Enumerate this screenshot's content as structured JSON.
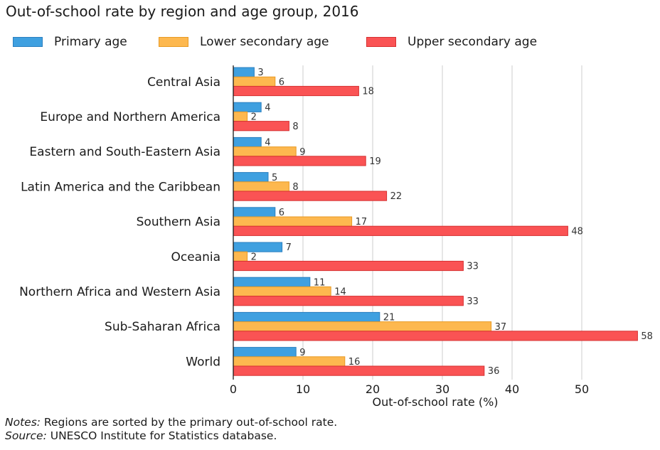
{
  "chart_data": {
    "type": "bar",
    "orientation": "horizontal",
    "title": "Out-of-school rate by region and age group, 2016",
    "xlabel": "Out-of-school rate (%)",
    "ylabel": "",
    "xlim": [
      0,
      59
    ],
    "xticks": [
      0,
      10,
      20,
      30,
      40,
      50
    ],
    "grid": true,
    "legend_position": "top-left",
    "categories": [
      "Central Asia",
      "Europe and Northern America",
      "Eastern and South-Eastern Asia",
      "Latin America and the Caribbean",
      "Southern Asia",
      "Oceania",
      "Northern Africa and Western Asia",
      "Sub-Saharan Africa",
      "World"
    ],
    "series": [
      {
        "name": "Primary age",
        "color": "#3fa0e0",
        "border": "#2b7fc0",
        "values": [
          3,
          4,
          4,
          5,
          6,
          7,
          11,
          21,
          9
        ]
      },
      {
        "name": "Lower secondary age",
        "color": "#fdb84f",
        "border": "#e89a25",
        "values": [
          6,
          2,
          9,
          8,
          17,
          2,
          14,
          37,
          16
        ]
      },
      {
        "name": "Upper secondary age",
        "color": "#fa5354",
        "border": "#d63031",
        "values": [
          18,
          8,
          19,
          22,
          48,
          33,
          33,
          58,
          36
        ]
      }
    ]
  },
  "notes": {
    "notes_label": "Notes:",
    "notes_text": " Regions are sorted by the primary out-of-school rate.",
    "source_label": "Source:",
    "source_text": " UNESCO Institute for Statistics database."
  }
}
